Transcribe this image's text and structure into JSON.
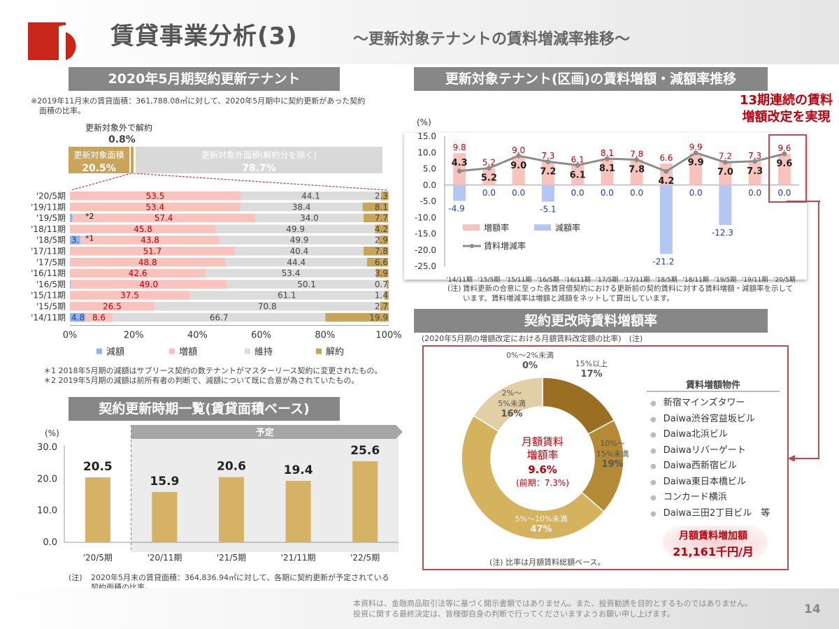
{
  "header": {
    "title": "賃貸事業分析(3)",
    "subtitle": "～更新対象テナントの賃料増減率推移～"
  },
  "left_top": {
    "heading": "2020年5月期契約更新テナント",
    "note_line1": "※2019年11月末の賃貸面積：361,788.08㎡に対して、2020年5月期中に契約更新があった契約",
    "note_line2": "面積の比率。",
    "cancel_label": "更新対象外で解約",
    "cancel_value": "0.8%",
    "target_label": "更新対象面積",
    "target_value": "20.5%",
    "nontarget_label": "更新対象外面積(解約分を除く)",
    "nontarget_value": "78.7%",
    "footnote1": "＊1 2018年5月期の減額はサブリース契約の数テナントがマスターリース契約に変更されたもの。",
    "footnote2": "＊2 2019年5月期の減額は前所有者の判断で、減額について既に合意が為されていたもの。"
  },
  "chart_breakdown": {
    "type": "bar",
    "orientation": "horizontal-stacked-100",
    "categories": [
      "'20/5期",
      "'19/11期",
      "'19/5期",
      "'18/11期",
      "'18/5期",
      "'17/11期",
      "'17/5期",
      "'16/11期",
      "'16/5期",
      "'15/11期",
      "'15/5期",
      "'14/11期"
    ],
    "markers": [
      "",
      "",
      "*2",
      "",
      "*1",
      "",
      "",
      "",
      "",
      "",
      "",
      ""
    ],
    "series": [
      {
        "name": "減額",
        "color": "#95b3e8",
        "values": [
          0,
          0,
          0.7,
          0,
          3.2,
          0,
          0,
          0,
          0.2,
          0,
          0,
          4.8
        ]
      },
      {
        "name": "増額",
        "color": "#f9c3bd",
        "values": [
          53.5,
          53.4,
          57.4,
          45.8,
          43.8,
          51.7,
          48.8,
          42.6,
          49.0,
          37.5,
          26.5,
          8.6
        ]
      },
      {
        "name": "維持",
        "color": "#dcdcdc",
        "values": [
          44.1,
          38.4,
          34.0,
          49.9,
          49.9,
          40.4,
          44.4,
          53.4,
          50.1,
          61.1,
          70.8,
          66.7
        ]
      },
      {
        "name": "解約",
        "color": "#c9a55c",
        "values": [
          2.3,
          8.1,
          7.7,
          4.2,
          2.9,
          7.8,
          6.6,
          3.9,
          0.7,
          1.4,
          2.7,
          19.9
        ]
      }
    ],
    "labels": [
      [
        "",
        "53.5",
        "44.1",
        "2.3"
      ],
      [
        "",
        "53.4",
        "38.4",
        "8.1"
      ],
      [
        "0.7",
        "57.4",
        "34.0",
        "7.7"
      ],
      [
        "",
        "45.8",
        "49.9",
        "4.2"
      ],
      [
        "3.2",
        "43.8",
        "49.9",
        "2.9"
      ],
      [
        "",
        "51.7",
        "40.4",
        "7.8"
      ],
      [
        "",
        "48.8",
        "44.4",
        "6.6"
      ],
      [
        "",
        "42.6",
        "53.4",
        "3.9"
      ],
      [
        "0.2",
        "49.0",
        "50.1",
        "0.7"
      ],
      [
        "",
        "37.5",
        "61.1",
        "1.4"
      ],
      [
        "",
        "26.5",
        "70.8",
        "2.7"
      ],
      [
        "4.8",
        "8.6",
        "66.7",
        "19.9"
      ]
    ],
    "xticks": [
      "0%",
      "20%",
      "40%",
      "60%",
      "80%",
      "100%"
    ],
    "xlim": [
      0,
      100
    ]
  },
  "left_bottom": {
    "heading": "契約更新時期一覧(賃貸面積ベース)",
    "planned_label": "予定",
    "note_mark": "(注)",
    "note_line1": "2020年5月末の賃貸面積：364,836.94㎡に対して、各期に契約更新が予定されている",
    "note_line2": "契約面積の比率。"
  },
  "chart_schedule": {
    "type": "bar",
    "categories": [
      "'20/5期",
      "'20/11期",
      "'21/5期",
      "'21/11期",
      "'22/5期"
    ],
    "values": [
      20.5,
      15.9,
      20.6,
      19.4,
      25.6
    ],
    "labels": [
      "20.5",
      "15.9",
      "20.6",
      "19.4",
      "25.6"
    ],
    "ylabel": "(%)",
    "yticks": [
      "0.0",
      "10.0",
      "20.0",
      "30.0"
    ],
    "ylim": [
      0,
      30
    ],
    "color": "#d6b266"
  },
  "right_top": {
    "heading": "更新対象テナント(区画)の賃料増額・減額率推移",
    "callout_line1": "13期連続の賃料",
    "callout_line2": "増額改定を実現",
    "note_mark": "(注)",
    "note_line1": "賃料更新の合意に至った各賃貸借契約における更新前の契約賃料に対する賃料増額・減額率を示して",
    "note_line2": "います。賃料増減率は増額と減額をネットして算出しています。"
  },
  "chart_rate": {
    "type": "bar+line",
    "categories": [
      "'14/11期",
      "'15/5期",
      "'15/11期",
      "'16/5期",
      "'16/11期",
      "'17/5期",
      "'17/11期",
      "'18/5期",
      "'18/11期",
      "'19/5期",
      "'19/11期",
      "'20/5期"
    ],
    "increase": {
      "name": "増額率",
      "color": "#f9c3bd",
      "values": [
        9.8,
        5.2,
        9.0,
        7.3,
        6.1,
        8.1,
        7.8,
        6.6,
        9.9,
        7.2,
        7.3,
        9.6
      ],
      "labels": [
        "9.8",
        "5.2",
        "9.0",
        "7.3",
        "6.1",
        "8.1",
        "7.8",
        "6.6",
        "9.9",
        "7.2",
        "7.3",
        "9.6"
      ]
    },
    "decrease": {
      "name": "減額率",
      "color": "#b4c7f2",
      "values": [
        -4.9,
        0.0,
        0.0,
        -5.1,
        0.0,
        0.0,
        0.0,
        -21.2,
        0.0,
        -12.3,
        0.0,
        0.0
      ],
      "labels": [
        "-4.9",
        "0.0",
        "0.0",
        "-5.1",
        "0.0",
        "0.0",
        "0.0",
        "-21.2",
        "0.0",
        "-12.3",
        "0.0",
        "0.0"
      ]
    },
    "net": {
      "name": "賃料増減率",
      "color": "#8c8c8c",
      "values": [
        4.3,
        5.2,
        9.0,
        7.2,
        6.1,
        8.1,
        7.8,
        4.2,
        9.9,
        7.0,
        7.3,
        9.6
      ],
      "labels": [
        "4.3",
        "5.2",
        "9.0",
        "7.2",
        "6.1",
        "8.1",
        "7.8",
        "4.2",
        "9.9",
        "7.0",
        "7.3",
        "9.6"
      ]
    },
    "ylabel": "(%)",
    "yticks": [
      "15.0",
      "10.0",
      "5.0",
      "0.0",
      "-5.0",
      "-10.0",
      "-15.0",
      "-20.0",
      "-25.0"
    ],
    "ylim": [
      -25,
      15
    ]
  },
  "right_bottom": {
    "heading": "契約更改時賃料増額率",
    "sub_note": "(2020年5月期の増額改定における月額賃料改定額の比率)　(注)",
    "center_line1": "月額賃料",
    "center_line2": "増額率",
    "center_value": "9.6%",
    "center_prev": "(前期：7.3%)",
    "bottom_note": "(注) 比率は月額賃料総額ベース。",
    "props_title": "賃料増額物件",
    "props": [
      "新宿マインズタワー",
      "Daiwa渋谷宮益坂ビル",
      "Daiwa北浜ビル",
      "Daiwaリバーゲート",
      "Daiwa西新宿ビル",
      "Daiwa東日本橋ビル",
      "コンカード横浜",
      "Daiwa三田2丁目ビル　等"
    ],
    "increase_label": "月額賃料増加額",
    "increase_value": "21,161千円/月"
  },
  "chart_donut": {
    "type": "pie",
    "categories": [
      "15%以上",
      "10%～15%未満",
      "5%～10%未満",
      "2%～5%未満",
      "0%～2%未満"
    ],
    "values": [
      17,
      19,
      47,
      16,
      0
    ],
    "label_lines": [
      [
        "15%以上",
        "17%"
      ],
      [
        "10%～",
        "15%未満",
        "19%"
      ],
      [
        "5%～10%未満",
        "47%"
      ],
      [
        "2%～",
        "5%未満",
        "16%"
      ],
      [
        "0%～2%未満",
        "0%"
      ]
    ],
    "colors": [
      "#9b6f22",
      "#b48a36",
      "#d4b25e",
      "#e3cfa6",
      "#c7b79a"
    ]
  },
  "footer": {
    "line1": "本資料は、金融商品取引法等に基づく開示書類ではありません。また、投資勧誘を目的とするものではありません。",
    "line2": "投資に関する最終決定は、皆様御自身の判断で行ってくださいますようお願い申し上げます。",
    "page": "14"
  }
}
